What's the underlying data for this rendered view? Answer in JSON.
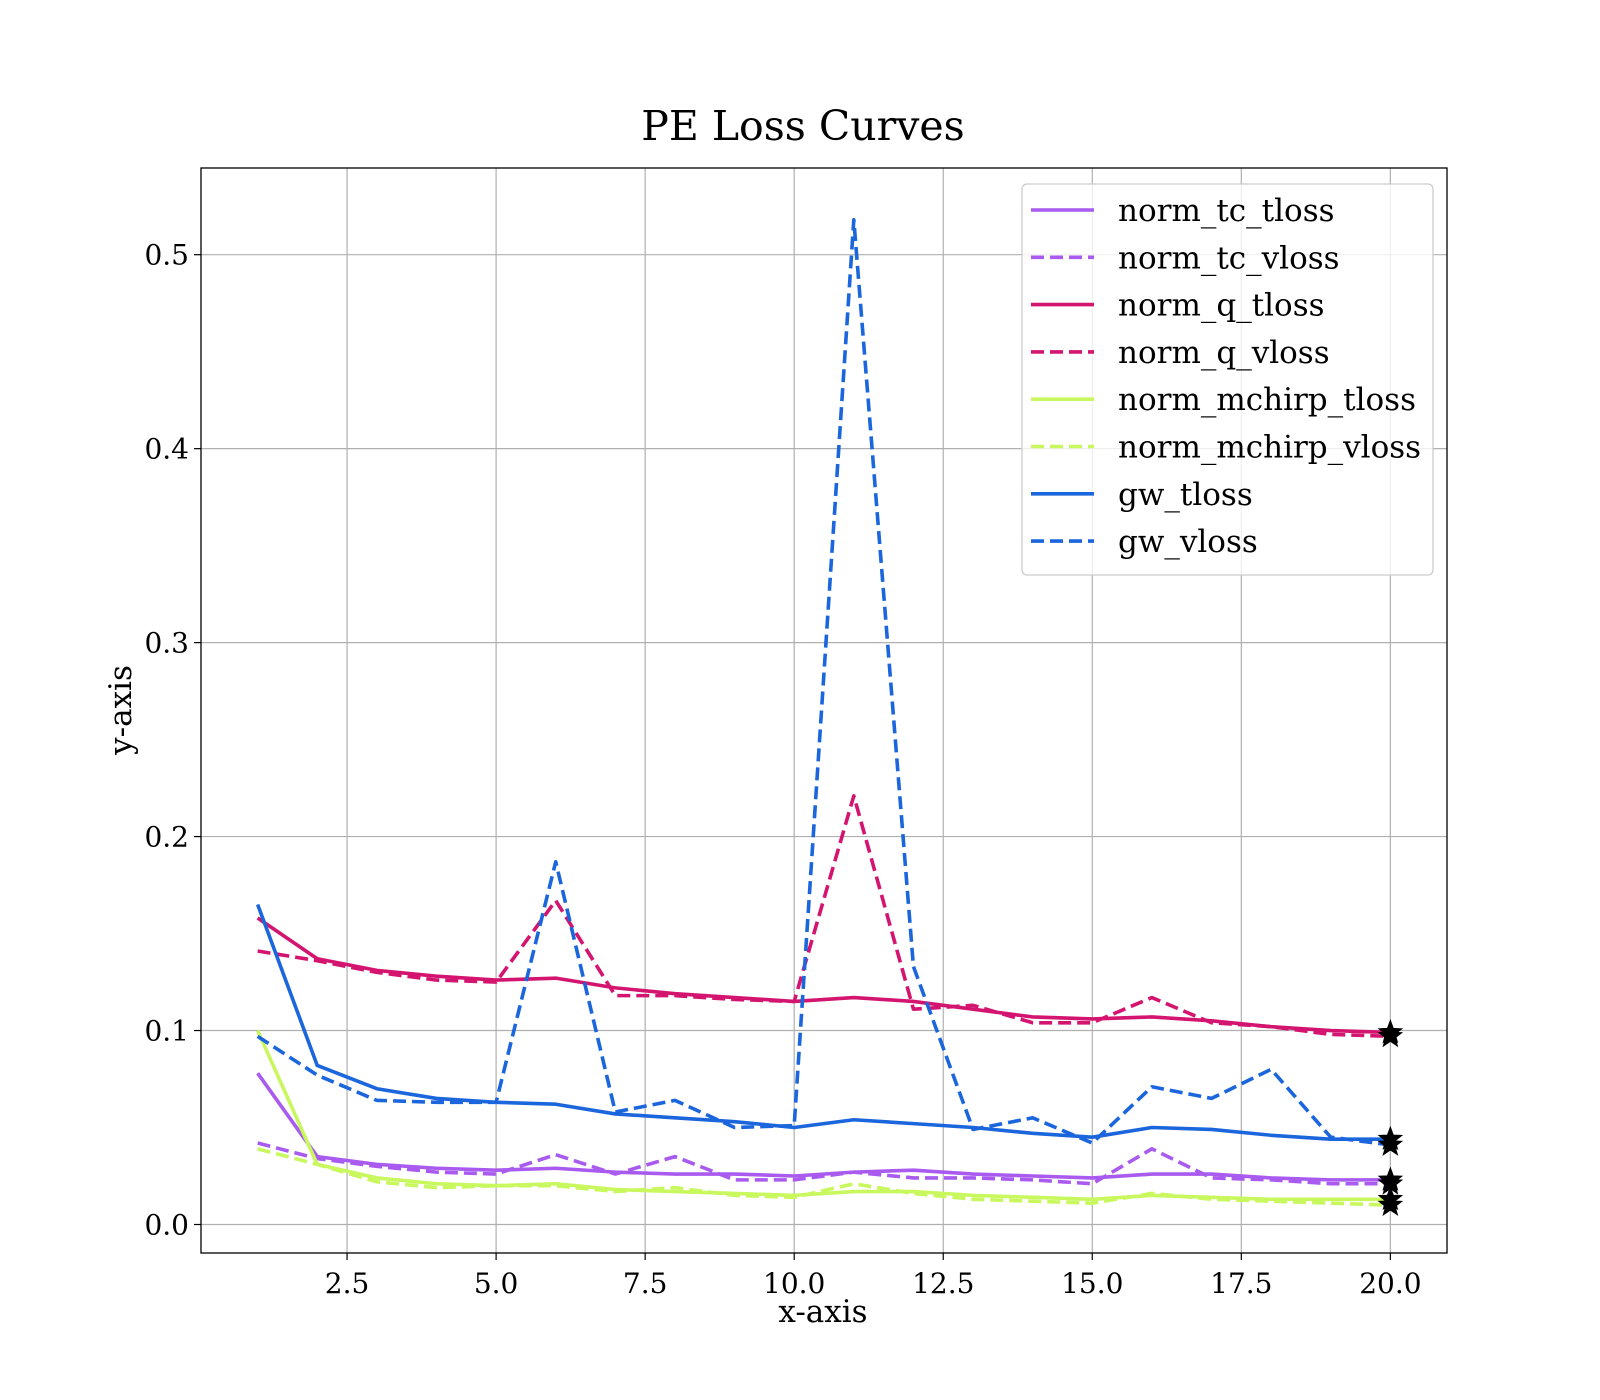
{
  "chart_data": {
    "type": "line",
    "title": "PE Loss Curves",
    "xlabel": "x-axis",
    "ylabel": "y-axis",
    "xlim": [
      0.05,
      20.95
    ],
    "ylim": [
      -0.0147,
      0.5447
    ],
    "xticks": [
      2.5,
      5.0,
      7.5,
      10.0,
      12.5,
      15.0,
      17.5,
      20.0
    ],
    "xtick_labels": [
      "2.5",
      "5.0",
      "7.5",
      "10.0",
      "12.5",
      "15.0",
      "17.5",
      "20.0"
    ],
    "yticks": [
      0.0,
      0.1,
      0.2,
      0.3,
      0.4,
      0.5
    ],
    "ytick_labels": [
      "0.0",
      "0.1",
      "0.2",
      "0.3",
      "0.4",
      "0.5"
    ],
    "grid": true,
    "legend_position": "top-right",
    "end_marker": "star",
    "x": [
      1,
      2,
      3,
      4,
      5,
      6,
      7,
      8,
      9,
      10,
      11,
      12,
      13,
      14,
      15,
      16,
      17,
      18,
      19,
      20
    ],
    "series": [
      {
        "name": "norm_tc_tloss",
        "color": "#a95aef",
        "dash": "solid",
        "values": [
          0.078,
          0.035,
          0.031,
          0.029,
          0.028,
          0.029,
          0.027,
          0.026,
          0.026,
          0.025,
          0.027,
          0.028,
          0.026,
          0.025,
          0.024,
          0.026,
          0.026,
          0.024,
          0.023,
          0.023
        ]
      },
      {
        "name": "norm_tc_vloss",
        "color": "#a95aef",
        "dash": "dashed",
        "values": [
          0.042,
          0.034,
          0.03,
          0.027,
          0.026,
          0.036,
          0.026,
          0.035,
          0.023,
          0.023,
          0.027,
          0.024,
          0.024,
          0.023,
          0.021,
          0.039,
          0.024,
          0.023,
          0.021,
          0.021
        ]
      },
      {
        "name": "norm_q_tloss",
        "color": "#d31570",
        "dash": "solid",
        "values": [
          0.158,
          0.137,
          0.131,
          0.128,
          0.126,
          0.127,
          0.122,
          0.119,
          0.117,
          0.115,
          0.117,
          0.115,
          0.111,
          0.107,
          0.106,
          0.107,
          0.105,
          0.102,
          0.1,
          0.099
        ]
      },
      {
        "name": "norm_q_vloss",
        "color": "#d31570",
        "dash": "dashed",
        "values": [
          0.141,
          0.136,
          0.13,
          0.126,
          0.125,
          0.167,
          0.118,
          0.118,
          0.116,
          0.115,
          0.221,
          0.111,
          0.113,
          0.104,
          0.104,
          0.117,
          0.104,
          0.102,
          0.098,
          0.097
        ]
      },
      {
        "name": "norm_mchirp_tloss",
        "color": "#c8f75e",
        "dash": "solid",
        "values": [
          0.1,
          0.031,
          0.024,
          0.021,
          0.02,
          0.021,
          0.018,
          0.017,
          0.016,
          0.015,
          0.017,
          0.017,
          0.015,
          0.014,
          0.013,
          0.015,
          0.014,
          0.013,
          0.013,
          0.013
        ]
      },
      {
        "name": "norm_mchirp_vloss",
        "color": "#c8f75e",
        "dash": "dashed",
        "values": [
          0.039,
          0.031,
          0.022,
          0.019,
          0.02,
          0.02,
          0.017,
          0.019,
          0.015,
          0.014,
          0.021,
          0.016,
          0.013,
          0.012,
          0.011,
          0.016,
          0.013,
          0.012,
          0.011,
          0.01
        ]
      },
      {
        "name": "gw_tloss",
        "color": "#1b66dc",
        "dash": "solid",
        "values": [
          0.165,
          0.082,
          0.07,
          0.065,
          0.063,
          0.062,
          0.057,
          0.055,
          0.053,
          0.05,
          0.054,
          0.052,
          0.05,
          0.047,
          0.045,
          0.05,
          0.049,
          0.046,
          0.044,
          0.044
        ]
      },
      {
        "name": "gw_vloss",
        "color": "#1b66dc",
        "dash": "dashed",
        "values": [
          0.097,
          0.077,
          0.064,
          0.063,
          0.063,
          0.187,
          0.058,
          0.064,
          0.05,
          0.051,
          0.518,
          0.133,
          0.049,
          0.055,
          0.042,
          0.071,
          0.065,
          0.08,
          0.045,
          0.041
        ]
      }
    ]
  }
}
